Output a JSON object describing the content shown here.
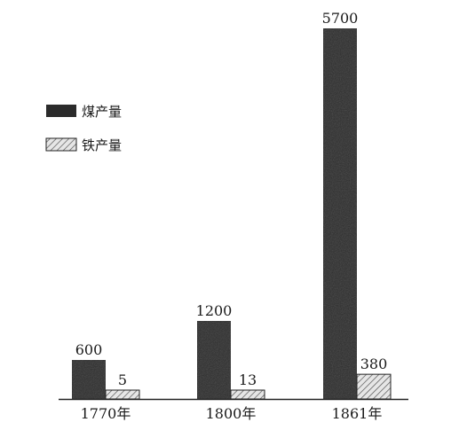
{
  "chart_data": {
    "type": "bar",
    "categories": [
      "1770年",
      "1800年",
      "1861年"
    ],
    "series": [
      {
        "name": "煤产量",
        "values": [
          600,
          1200,
          5700
        ],
        "fill": "dark"
      },
      {
        "name": "铁产量",
        "values": [
          5,
          13,
          380
        ],
        "fill": "hatched"
      }
    ],
    "title": "",
    "xlabel": "",
    "ylabel": "",
    "ylim": [
      0,
      5700
    ],
    "grid": false,
    "legend_position": "left-middle",
    "colors": {
      "coal": "#2b2b2b",
      "iron_bg": "#e6e6e6",
      "iron_hatch": "#555555",
      "axis": "#222222"
    }
  }
}
